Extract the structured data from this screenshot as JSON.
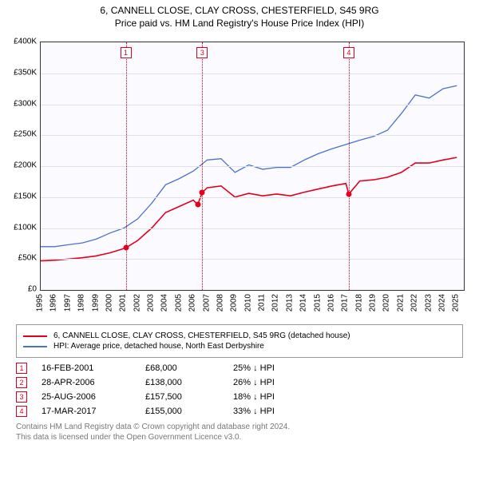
{
  "title_line1": "6, CANNELL CLOSE, CLAY CROSS, CHESTERFIELD, S45 9RG",
  "title_line2": "Price paid vs. HM Land Registry's House Price Index (HPI)",
  "chart": {
    "type": "line",
    "background_color": "#fafaff",
    "grid_color": "#e0e0e8",
    "border_color": "#333333",
    "x_years": [
      1995,
      1996,
      1997,
      1998,
      1999,
      2000,
      2001,
      2002,
      2003,
      2004,
      2005,
      2006,
      2007,
      2008,
      2009,
      2010,
      2011,
      2012,
      2013,
      2014,
      2015,
      2016,
      2017,
      2018,
      2019,
      2020,
      2021,
      2022,
      2023,
      2024,
      2025
    ],
    "xmin": 1995,
    "xmax": 2025.5,
    "ylim": [
      0,
      400000
    ],
    "ytick_step": 50000,
    "yticks": [
      "£0",
      "£50K",
      "£100K",
      "£150K",
      "£200K",
      "£250K",
      "£300K",
      "£350K",
      "£400K"
    ],
    "label_fontsize": 10,
    "series": [
      {
        "name": "property",
        "color": "#e4001c",
        "width": 1.6,
        "x": [
          1995,
          1996,
          1997,
          1998,
          1999,
          2000,
          2001,
          2001.13,
          2002,
          2003,
          2004,
          2005,
          2006,
          2006.32,
          2006.65,
          2007,
          2008,
          2009,
          2010,
          2011,
          2012,
          2013,
          2014,
          2015,
          2016,
          2017,
          2017.21,
          2018,
          2019,
          2020,
          2021,
          2022,
          2023,
          2024,
          2025
        ],
        "y": [
          47000,
          48000,
          50000,
          52000,
          55000,
          60000,
          67000,
          68000,
          80000,
          100000,
          125000,
          135000,
          145000,
          138000,
          157500,
          165000,
          168000,
          150000,
          156000,
          152000,
          155000,
          152000,
          158000,
          163000,
          168000,
          172000,
          155000,
          176000,
          178000,
          182000,
          190000,
          205000,
          205000,
          210000,
          214000
        ]
      },
      {
        "name": "hpi",
        "color": "#4a72c8",
        "width": 1.3,
        "x": [
          1995,
          1996,
          1997,
          1998,
          1999,
          2000,
          2001,
          2002,
          2003,
          2004,
          2005,
          2006,
          2007,
          2008,
          2009,
          2010,
          2011,
          2012,
          2013,
          2014,
          2015,
          2016,
          2017,
          2018,
          2019,
          2020,
          2021,
          2022,
          2023,
          2024,
          2025
        ],
        "y": [
          70000,
          70000,
          73000,
          76000,
          82000,
          92000,
          100000,
          115000,
          140000,
          170000,
          180000,
          192000,
          210000,
          212000,
          190000,
          202000,
          195000,
          198000,
          198000,
          210000,
          220000,
          228000,
          235000,
          242000,
          248000,
          258000,
          285000,
          315000,
          310000,
          325000,
          330000
        ]
      }
    ],
    "sale_markers": [
      {
        "idx": "1",
        "x": 2001.13,
        "y": 68000,
        "color": "#e4001c"
      },
      {
        "idx": "2",
        "x": 2006.32,
        "y": 138000,
        "color": "#e4001c"
      },
      {
        "idx": "3",
        "x": 2006.65,
        "y": 157500,
        "color": "#e4001c"
      },
      {
        "idx": "4",
        "x": 2017.21,
        "y": 155000,
        "color": "#e4001c"
      }
    ],
    "vlines": [
      {
        "idx": "1",
        "x": 2001.13,
        "color": "#e4001c"
      },
      {
        "idx": "3",
        "x": 2006.65,
        "color": "#e4001c"
      },
      {
        "idx": "4",
        "x": 2017.21,
        "color": "#e4001c"
      }
    ]
  },
  "legend": {
    "items": [
      {
        "color": "#e4001c",
        "label": "6, CANNELL CLOSE, CLAY CROSS, CHESTERFIELD, S45 9RG (detached house)"
      },
      {
        "color": "#4a72c8",
        "label": "HPI: Average price, detached house, North East Derbyshire"
      }
    ]
  },
  "sales": [
    {
      "idx": "1",
      "date": "16-FEB-2001",
      "price": "£68,000",
      "hpi": "25% ↓ HPI",
      "color": "#e4001c"
    },
    {
      "idx": "2",
      "date": "28-APR-2006",
      "price": "£138,000",
      "hpi": "26% ↓ HPI",
      "color": "#e4001c"
    },
    {
      "idx": "3",
      "date": "25-AUG-2006",
      "price": "£157,500",
      "hpi": "18% ↓ HPI",
      "color": "#e4001c"
    },
    {
      "idx": "4",
      "date": "17-MAR-2017",
      "price": "£155,000",
      "hpi": "33% ↓ HPI",
      "color": "#e4001c"
    }
  ],
  "footnote_line1": "Contains HM Land Registry data © Crown copyright and database right 2024.",
  "footnote_line2": "This data is licensed under the Open Government Licence v3.0."
}
